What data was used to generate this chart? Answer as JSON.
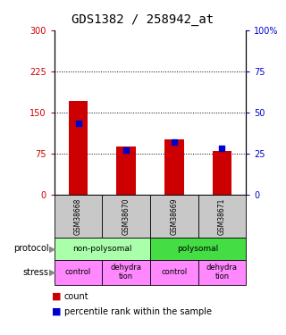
{
  "title": "GDS1382 / 258942_at",
  "samples": [
    "GSM38668",
    "GSM38670",
    "GSM38669",
    "GSM38671"
  ],
  "count_values": [
    170,
    88,
    100,
    80
  ],
  "percentile_values": [
    43,
    27,
    32,
    28
  ],
  "ylim_left": [
    0,
    300
  ],
  "ylim_right": [
    0,
    100
  ],
  "yticks_left": [
    0,
    75,
    150,
    225,
    300
  ],
  "yticks_right": [
    0,
    25,
    50,
    75,
    100
  ],
  "ytick_labels_left": [
    "0",
    "75",
    "150",
    "225",
    "300"
  ],
  "ytick_labels_right": [
    "0",
    "25",
    "50",
    "75",
    "100%"
  ],
  "hlines": [
    75,
    150,
    225
  ],
  "bar_color": "#cc0000",
  "dot_color": "#0000cc",
  "protocol_labels": [
    "non-polysomal",
    "polysomal"
  ],
  "protocol_colors": [
    "#aaffaa",
    "#44dd44"
  ],
  "stress_labels": [
    "control",
    "dehydra\ntion",
    "control",
    "dehydra\ntion"
  ],
  "stress_color": "#ff88ff",
  "sample_bg_color": "#c8c8c8",
  "title_fontsize": 10,
  "legend_count_color": "#cc0000",
  "legend_pct_color": "#0000cc",
  "bar_width": 0.4
}
